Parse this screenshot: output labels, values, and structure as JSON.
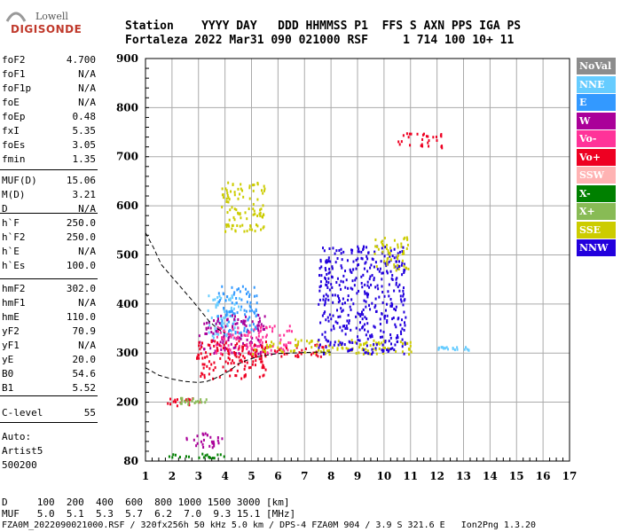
{
  "logo": {
    "line1": "Lowell",
    "line2": "DIGISONDE"
  },
  "header": {
    "row1": "Station    YYYY DAY   DDD HHMMSS P1  FFS S AXN PPS IGA PS",
    "row2": "Fortaleza 2022 Mar31 090 021000 RSF     1 714 100 10+ 11"
  },
  "params": [
    {
      "name": "foF2",
      "value": "4.700"
    },
    {
      "name": "foF1",
      "value": "N/A"
    },
    {
      "name": "foF1p",
      "value": "N/A"
    },
    {
      "name": "foE",
      "value": "N/A"
    },
    {
      "name": "foEp",
      "value": "0.48"
    },
    {
      "name": "fxI",
      "value": "5.35"
    },
    {
      "name": "foEs",
      "value": "3.05"
    },
    {
      "name": "fmin",
      "value": "1.35"
    },
    {
      "name": "MUF(D)",
      "value": "15.06"
    },
    {
      "name": "M(D)",
      "value": "3.21"
    },
    {
      "name": "D",
      "value": "N/A"
    },
    {
      "name": "h`F",
      "value": "250.0"
    },
    {
      "name": "h`F2",
      "value": "250.0"
    },
    {
      "name": "h`E",
      "value": "N/A"
    },
    {
      "name": "h`Es",
      "value": "100.0"
    },
    {
      "name": "hmF2",
      "value": "302.0"
    },
    {
      "name": "hmF1",
      "value": "N/A"
    },
    {
      "name": "hmE",
      "value": "110.0"
    },
    {
      "name": "yF2",
      "value": "70.9"
    },
    {
      "name": "yF1",
      "value": "N/A"
    },
    {
      "name": "yE",
      "value": "20.0"
    },
    {
      "name": "B0",
      "value": "54.6"
    },
    {
      "name": "B1",
      "value": "5.52"
    },
    {
      "name": "C-level",
      "value": "55"
    }
  ],
  "autoscale": {
    "line1": "Auto:",
    "line2": "Artist5",
    "line3": "500200"
  },
  "footer": {
    "row1": "D     100  200  400  600  800 1000 1500 3000 [km]",
    "row2": "MUF   5.0  5.1  5.3  5.7  6.2  7.0  9.3 15.1 [MHz]",
    "row3": "FZA0M_2022090021000.RSF / 320fx256h 50 kHz 5.0 km / DPS-4 FZA0M 904 / 3.9 S 321.6 E   Ion2Png 1.3.20"
  },
  "legend": [
    {
      "label": "NoVal",
      "color": "#8c8c8c"
    },
    {
      "label": "NNE",
      "color": "#66ccff"
    },
    {
      "label": "E",
      "color": "#3399ff"
    },
    {
      "label": "W",
      "color": "#aa0099"
    },
    {
      "label": "Vo-",
      "color": "#ff3399"
    },
    {
      "label": "Vo+",
      "color": "#ee0022"
    },
    {
      "label": "SSW",
      "color": "#ffb3b3"
    },
    {
      "label": "X-",
      "color": "#008000"
    },
    {
      "label": "X+",
      "color": "#88bb55"
    },
    {
      "label": "SSE",
      "color": "#cccc00"
    },
    {
      "label": "NNW",
      "color": "#2200dd"
    }
  ],
  "chart_data": {
    "type": "scatter",
    "title": "",
    "xlabel": "",
    "ylabel": "",
    "xlim": [
      1,
      17
    ],
    "ylim": [
      80,
      900
    ],
    "xticks": [
      1,
      2,
      3,
      4,
      5,
      6,
      7,
      8,
      9,
      10,
      11,
      12,
      13,
      14,
      15,
      16,
      17
    ],
    "yticks": [
      80,
      200,
      300,
      400,
      500,
      600,
      700,
      800,
      900
    ],
    "grid": true,
    "trace": {
      "name": "",
      "x": [
        1.0,
        1.5,
        2.0,
        2.5,
        3.0,
        3.3,
        3.6,
        3.9,
        4.2,
        4.5,
        4.8,
        5.2,
        5.6,
        6.0,
        6.5,
        7.0,
        7.5,
        8.0
      ],
      "y": [
        270,
        255,
        247,
        242,
        240,
        242,
        248,
        256,
        265,
        278,
        285,
        292,
        296,
        299,
        300,
        301,
        302,
        302
      ]
    },
    "profile": {
      "name": "",
      "x": [
        1.0,
        1.3,
        1.6,
        2.0,
        2.4,
        2.8,
        3.1,
        3.4,
        3.7,
        4.0
      ],
      "y": [
        545,
        515,
        480,
        455,
        430,
        405,
        385,
        365,
        350,
        340
      ]
    },
    "clusters": [
      {
        "series": "X-",
        "x": [
          1.6,
          4.0
        ],
        "y": [
          87,
          97
        ]
      },
      {
        "series": "W",
        "x": [
          2.5,
          4.0
        ],
        "y": [
          110,
          140
        ]
      },
      {
        "series": "Vo+",
        "x": [
          1.8,
          3.0
        ],
        "y": [
          195,
          210
        ]
      },
      {
        "series": "X+",
        "x": [
          2.2,
          3.3
        ],
        "y": [
          198,
          212
        ]
      },
      {
        "series": "NNE",
        "x": [
          3.3,
          4.6
        ],
        "y": [
          330,
          420
        ]
      },
      {
        "series": "E",
        "x": [
          3.7,
          5.2
        ],
        "y": [
          340,
          440
        ]
      },
      {
        "series": "W",
        "x": [
          3.0,
          5.5
        ],
        "y": [
          300,
          380
        ]
      },
      {
        "series": "Vo-",
        "x": [
          3.6,
          6.5
        ],
        "y": [
          300,
          360
        ]
      },
      {
        "series": "Vo+",
        "x": [
          2.9,
          5.6
        ],
        "y": [
          250,
          330
        ]
      },
      {
        "series": "Vo+",
        "x": [
          4.5,
          8.0
        ],
        "y": [
          295,
          320
        ]
      },
      {
        "series": "SSE",
        "x": [
          5.0,
          11.0
        ],
        "y": [
          300,
          330
        ]
      },
      {
        "series": "SSE",
        "x": [
          3.8,
          5.5
        ],
        "y": [
          550,
          650
        ]
      },
      {
        "series": "NNW",
        "x": [
          7.5,
          10.8
        ],
        "y": [
          300,
          520
        ]
      },
      {
        "series": "SSE",
        "x": [
          9.6,
          10.9
        ],
        "y": [
          470,
          540
        ]
      },
      {
        "series": "NNE",
        "x": [
          12.0,
          13.2
        ],
        "y": [
          308,
          315
        ]
      },
      {
        "series": "Vo+",
        "x": [
          10.5,
          12.2
        ],
        "y": [
          720,
          750
        ]
      }
    ]
  }
}
